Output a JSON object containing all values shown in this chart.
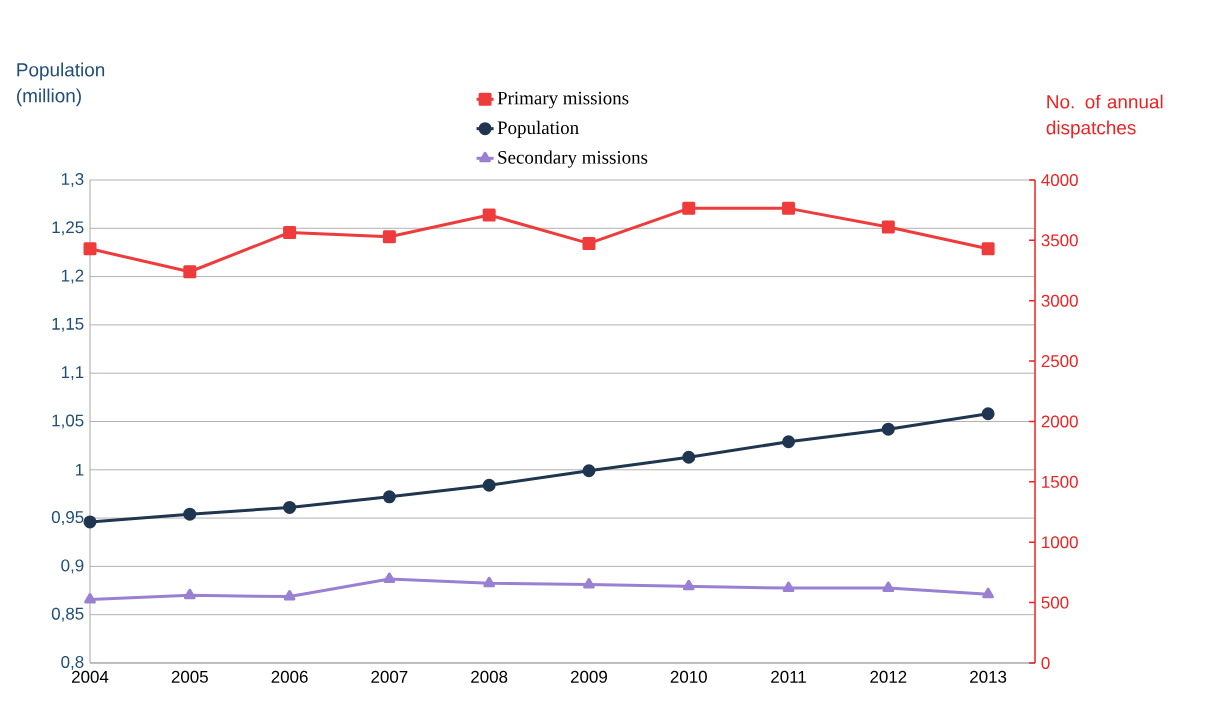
{
  "chart_data": {
    "type": "line",
    "x": [
      2004,
      2005,
      2006,
      2007,
      2008,
      2009,
      2010,
      2011,
      2012,
      2013
    ],
    "xlim": [
      2004,
      2013.47
    ],
    "xticks": [
      2004,
      2005,
      2006,
      2007,
      2008,
      2009,
      2010,
      2011,
      2012,
      2013
    ],
    "ylabel": "Population (million)",
    "y2label": "No. of annual dispatches",
    "ylim": [
      0.8,
      1.3
    ],
    "yticks": [
      {
        "value": 0.8,
        "label": "0,8"
      },
      {
        "value": 0.85,
        "label": "0,85"
      },
      {
        "value": 0.9,
        "label": "0,9"
      },
      {
        "value": 0.95,
        "label": "0,95"
      },
      {
        "value": 1,
        "label": "1"
      },
      {
        "value": 1.05,
        "label": "1,05"
      },
      {
        "value": 1.1,
        "label": "1,1"
      },
      {
        "value": 1.15,
        "label": "1,15"
      },
      {
        "value": 1.2,
        "label": "1,2"
      },
      {
        "value": 1.25,
        "label": "1,25"
      },
      {
        "value": 1.3,
        "label": "1,3"
      }
    ],
    "y2lim": [
      0,
      4000
    ],
    "y2ticks": [
      0,
      500,
      1000,
      1500,
      2000,
      2500,
      3000,
      3500,
      4000
    ],
    "grid": "y",
    "legend": "top",
    "series": [
      {
        "name": "Primary missions",
        "color": "#ee3b3b",
        "axis": "y2",
        "marker": "square",
        "values": [
          3430,
          3240,
          3565,
          3530,
          3710,
          3475,
          3765,
          3765,
          3610,
          3430
        ]
      },
      {
        "name": "Population",
        "color": "#1f3550",
        "marker": "circle",
        "values": [
          0.946,
          0.954,
          0.961,
          0.972,
          0.984,
          0.999,
          1.013,
          1.029,
          1.042,
          1.058
        ]
      },
      {
        "name": "Secondary missions",
        "color": "#9a80d2",
        "axis": "y2",
        "marker": "triangle",
        "values": [
          525,
          560,
          550,
          695,
          660,
          650,
          635,
          620,
          620,
          570
        ]
      }
    ]
  }
}
